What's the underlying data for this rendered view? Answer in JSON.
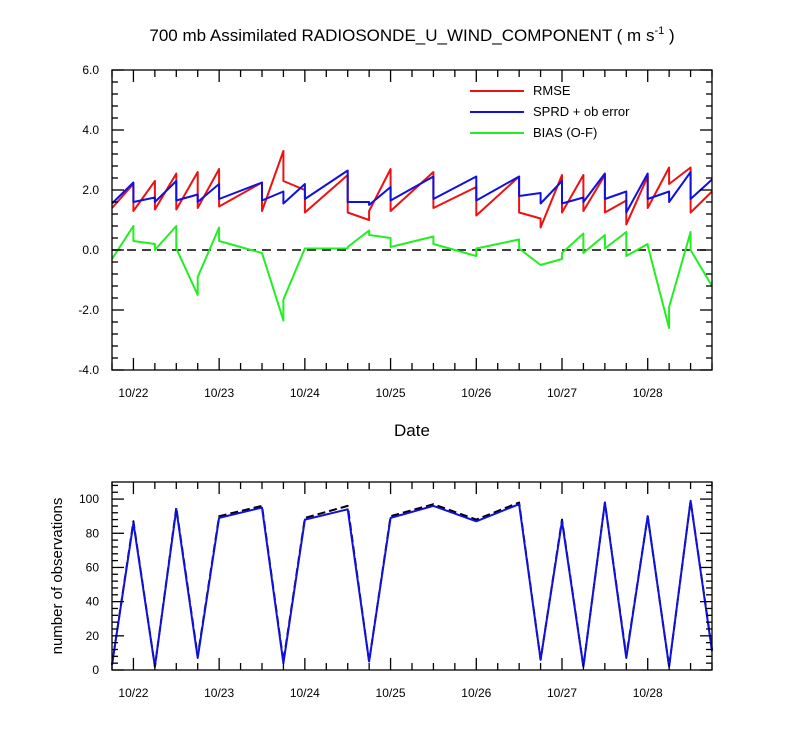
{
  "chart_data": [
    {
      "type": "line",
      "title": "700 mb Assimilated RADIOSONDE_U_WIND_COMPONENT ( m s",
      "title_superscript": "-1",
      "title_suffix": " )",
      "xlabel": "Date",
      "ylabel": "",
      "x_tick_labels": [
        "10/22",
        "10/23",
        "10/24",
        "10/25",
        "10/26",
        "10/27",
        "10/28"
      ],
      "y_tick_labels": [
        "6.0",
        "4.0",
        "2.0",
        "0.0",
        "-2.0",
        "-4.0"
      ],
      "xlim": [
        21.75,
        28.75
      ],
      "ylim": [
        -4,
        6
      ],
      "y_ticks": [
        6,
        4,
        2,
        0,
        -2,
        -4
      ],
      "reference_line": {
        "y": 0,
        "style": "dashed",
        "color": "#000000"
      },
      "legend_position": "top-right",
      "series": [
        {
          "name": "RMSE",
          "color": "#ee1111",
          "points": [
            [
              21.75,
              1.4
            ],
            [
              22.0,
              2.2
            ],
            [
              22.0,
              1.3
            ],
            [
              22.25,
              2.3
            ],
            [
              22.25,
              1.35
            ],
            [
              22.5,
              2.55
            ],
            [
              22.5,
              1.35
            ],
            [
              22.75,
              2.6
            ],
            [
              22.75,
              1.4
            ],
            [
              23.0,
              2.7
            ],
            [
              23.0,
              1.45
            ],
            [
              23.5,
              2.25
            ],
            [
              23.5,
              1.3
            ],
            [
              23.75,
              3.3
            ],
            [
              23.75,
              2.3
            ],
            [
              24.0,
              2.0
            ],
            [
              24.0,
              1.25
            ],
            [
              24.5,
              2.5
            ],
            [
              24.5,
              1.25
            ],
            [
              24.75,
              1.0
            ],
            [
              24.75,
              1.3
            ],
            [
              25.0,
              2.7
            ],
            [
              25.0,
              1.3
            ],
            [
              25.5,
              2.6
            ],
            [
              25.5,
              1.4
            ],
            [
              26.0,
              2.1
            ],
            [
              26.0,
              1.15
            ],
            [
              26.5,
              2.45
            ],
            [
              26.5,
              1.25
            ],
            [
              26.75,
              1.05
            ],
            [
              26.75,
              0.75
            ],
            [
              27.0,
              2.5
            ],
            [
              27.0,
              1.25
            ],
            [
              27.25,
              2.5
            ],
            [
              27.25,
              1.3
            ],
            [
              27.5,
              2.5
            ],
            [
              27.5,
              1.25
            ],
            [
              27.75,
              1.65
            ],
            [
              27.75,
              0.85
            ],
            [
              28.0,
              2.45
            ],
            [
              28.0,
              1.4
            ],
            [
              28.25,
              2.75
            ],
            [
              28.25,
              2.2
            ],
            [
              28.5,
              2.75
            ],
            [
              28.5,
              1.25
            ],
            [
              28.75,
              1.95
            ]
          ]
        },
        {
          "name": "SPRD + ob error",
          "color": "#1111dd",
          "points": [
            [
              21.75,
              1.55
            ],
            [
              22.0,
              2.25
            ],
            [
              22.0,
              1.6
            ],
            [
              22.25,
              1.75
            ],
            [
              22.25,
              1.6
            ],
            [
              22.5,
              2.3
            ],
            [
              22.5,
              1.65
            ],
            [
              22.75,
              1.85
            ],
            [
              22.75,
              1.6
            ],
            [
              23.0,
              2.2
            ],
            [
              23.0,
              1.7
            ],
            [
              23.5,
              2.25
            ],
            [
              23.5,
              1.65
            ],
            [
              23.75,
              1.95
            ],
            [
              23.75,
              1.55
            ],
            [
              24.0,
              2.2
            ],
            [
              24.0,
              1.7
            ],
            [
              24.5,
              2.65
            ],
            [
              24.5,
              1.6
            ],
            [
              24.75,
              1.6
            ],
            [
              24.75,
              1.5
            ],
            [
              25.0,
              2.1
            ],
            [
              25.0,
              1.65
            ],
            [
              25.5,
              2.45
            ],
            [
              25.5,
              1.7
            ],
            [
              26.0,
              2.45
            ],
            [
              26.0,
              1.65
            ],
            [
              26.5,
              2.45
            ],
            [
              26.5,
              1.8
            ],
            [
              26.75,
              1.9
            ],
            [
              26.75,
              1.55
            ],
            [
              27.0,
              2.3
            ],
            [
              27.0,
              1.55
            ],
            [
              27.25,
              1.75
            ],
            [
              27.25,
              1.6
            ],
            [
              27.5,
              2.55
            ],
            [
              27.5,
              1.7
            ],
            [
              27.75,
              1.95
            ],
            [
              27.75,
              1.25
            ],
            [
              28.0,
              2.55
            ],
            [
              28.0,
              1.7
            ],
            [
              28.25,
              1.95
            ],
            [
              28.25,
              1.6
            ],
            [
              28.5,
              2.6
            ],
            [
              28.5,
              1.7
            ],
            [
              28.75,
              2.35
            ]
          ]
        },
        {
          "name": "BIAS (O-F)",
          "color": "#22ee22",
          "points": [
            [
              21.75,
              -0.3
            ],
            [
              22.0,
              0.8
            ],
            [
              22.0,
              0.3
            ],
            [
              22.25,
              0.2
            ],
            [
              22.25,
              0.0
            ],
            [
              22.5,
              0.8
            ],
            [
              22.5,
              0.05
            ],
            [
              22.75,
              -1.5
            ],
            [
              22.75,
              -0.9
            ],
            [
              23.0,
              0.75
            ],
            [
              23.0,
              0.3
            ],
            [
              23.5,
              -0.1
            ],
            [
              23.5,
              -0.1
            ],
            [
              23.75,
              -2.35
            ],
            [
              23.75,
              -1.65
            ],
            [
              24.0,
              0.05
            ],
            [
              24.0,
              0.05
            ],
            [
              24.5,
              0.05
            ],
            [
              24.5,
              0.1
            ],
            [
              24.75,
              0.65
            ],
            [
              24.75,
              0.5
            ],
            [
              25.0,
              0.4
            ],
            [
              25.0,
              0.1
            ],
            [
              25.5,
              0.45
            ],
            [
              25.5,
              0.2
            ],
            [
              26.0,
              -0.2
            ],
            [
              26.0,
              0.05
            ],
            [
              26.5,
              0.35
            ],
            [
              26.5,
              0.05
            ],
            [
              26.75,
              -0.5
            ],
            [
              26.75,
              -0.5
            ],
            [
              27.0,
              -0.3
            ],
            [
              27.0,
              -0.1
            ],
            [
              27.25,
              0.55
            ],
            [
              27.25,
              -0.1
            ],
            [
              27.5,
              0.5
            ],
            [
              27.5,
              0.05
            ],
            [
              27.75,
              0.6
            ],
            [
              27.75,
              -0.2
            ],
            [
              28.0,
              0.2
            ],
            [
              28.0,
              0.15
            ],
            [
              28.25,
              -2.6
            ],
            [
              28.25,
              -1.9
            ],
            [
              28.5,
              0.6
            ],
            [
              28.5,
              0.0
            ],
            [
              28.75,
              -1.2
            ]
          ]
        }
      ]
    },
    {
      "type": "line",
      "title": "",
      "xlabel": "",
      "ylabel": "number of observations",
      "x_tick_labels": [
        "10/22",
        "10/23",
        "10/24",
        "10/25",
        "10/26",
        "10/27",
        "10/28"
      ],
      "y_tick_labels": [
        "100",
        "80",
        "60",
        "40",
        "20",
        "0"
      ],
      "xlim": [
        21.75,
        28.75
      ],
      "ylim": [
        0,
        110
      ],
      "y_ticks": [
        100,
        80,
        60,
        40,
        20,
        0
      ],
      "series": [
        {
          "style": "dashed",
          "color": "#000000",
          "points": [
            [
              21.75,
              3
            ],
            [
              22.0,
              87
            ],
            [
              22.25,
              2
            ],
            [
              22.5,
              95
            ],
            [
              22.75,
              8
            ],
            [
              23.0,
              90
            ],
            [
              23.5,
              96
            ],
            [
              23.75,
              5
            ],
            [
              24.0,
              89
            ],
            [
              24.5,
              96
            ],
            [
              24.75,
              5
            ],
            [
              25.0,
              90
            ],
            [
              25.5,
              97
            ],
            [
              26.0,
              88
            ],
            [
              26.5,
              98
            ],
            [
              26.75,
              6
            ],
            [
              27.0,
              88
            ],
            [
              27.25,
              2
            ],
            [
              27.5,
              98
            ],
            [
              27.75,
              8
            ],
            [
              28.0,
              90
            ],
            [
              28.25,
              2
            ],
            [
              28.5,
              99
            ],
            [
              28.75,
              12
            ]
          ]
        },
        {
          "style": "solid",
          "color": "#1111dd",
          "points": [
            [
              21.75,
              3
            ],
            [
              22.0,
              86
            ],
            [
              22.25,
              2
            ],
            [
              22.5,
              94
            ],
            [
              22.75,
              7
            ],
            [
              23.0,
              89
            ],
            [
              23.5,
              95
            ],
            [
              23.75,
              4
            ],
            [
              24.0,
              88
            ],
            [
              24.5,
              94
            ],
            [
              24.75,
              5
            ],
            [
              25.0,
              89
            ],
            [
              25.5,
              96
            ],
            [
              26.0,
              87
            ],
            [
              26.5,
              97
            ],
            [
              26.75,
              6
            ],
            [
              27.0,
              87
            ],
            [
              27.25,
              2
            ],
            [
              27.5,
              98
            ],
            [
              27.75,
              7
            ],
            [
              28.0,
              90
            ],
            [
              28.25,
              2
            ],
            [
              28.5,
              99
            ],
            [
              28.75,
              11
            ]
          ]
        }
      ]
    }
  ]
}
